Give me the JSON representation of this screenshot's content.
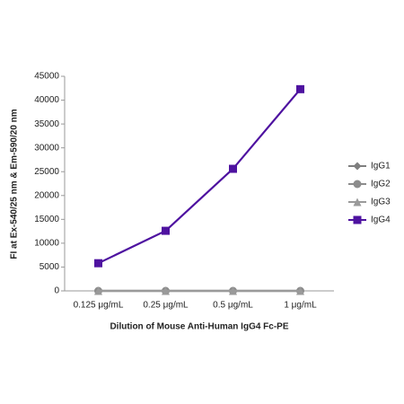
{
  "chart_data": {
    "type": "line",
    "x_label": "Dilution of Mouse Anti-Human IgG4 Fc-PE",
    "y_label": "FI at Ex-540/25 nm & Em-590/20 nm",
    "categories": [
      "0.125 μg/mL",
      "0.25 μg/mL",
      "0.5 μg/mL",
      "1 μg/mL"
    ],
    "series": [
      {
        "name": "IgG1",
        "color": "#7f7f7f",
        "marker": "diamond",
        "values": [
          0,
          0,
          0,
          0
        ]
      },
      {
        "name": "IgG2",
        "color": "#8c8c8c",
        "marker": "circle",
        "values": [
          0,
          0,
          0,
          0
        ]
      },
      {
        "name": "IgG3",
        "color": "#9a9a9a",
        "marker": "triangle",
        "values": [
          0,
          0,
          0,
          0
        ]
      },
      {
        "name": "IgG4",
        "color": "#4e12a0",
        "marker": "square",
        "values": [
          5800,
          12600,
          25600,
          42300
        ]
      }
    ],
    "ylim": [
      0,
      45000
    ],
    "yticks": [
      0,
      5000,
      10000,
      15000,
      20000,
      25000,
      30000,
      35000,
      40000,
      45000
    ],
    "grid": false,
    "legend": "right"
  }
}
